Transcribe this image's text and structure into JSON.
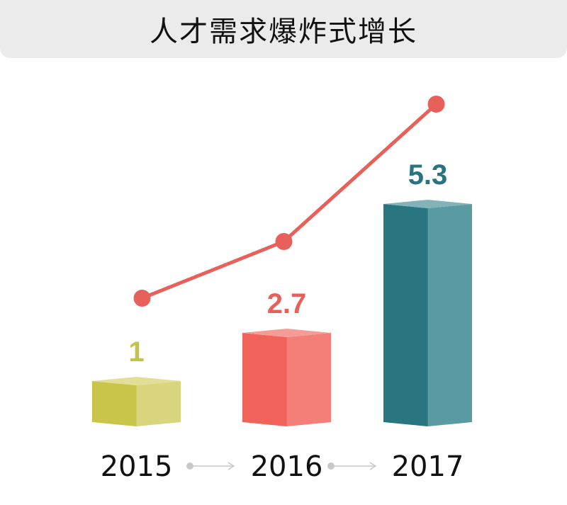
{
  "chart_data": {
    "type": "bar",
    "title": "人才需求爆炸式增长",
    "categories": [
      "2015",
      "2016",
      "2017"
    ],
    "values": [
      1,
      2.7,
      5.3
    ],
    "value_labels": [
      "1",
      "2.7",
      "5.3"
    ],
    "overlay_line": true,
    "bar_style": "3d-box",
    "grid": false,
    "colors": [
      {
        "front": "#c9c44a",
        "side": "#d9d57f",
        "top": "#e2de98",
        "label": "#c4c24a"
      },
      {
        "front": "#ef635a",
        "side": "#f37f78",
        "top": "#f59c96",
        "label": "#e8605a"
      },
      {
        "front": "#2a7680",
        "side": "#5a9aa2",
        "top": "#82b3b9",
        "label": "#2a7480"
      }
    ],
    "line_color": "#e8605a",
    "arrow_color": "#c8c8c8"
  }
}
